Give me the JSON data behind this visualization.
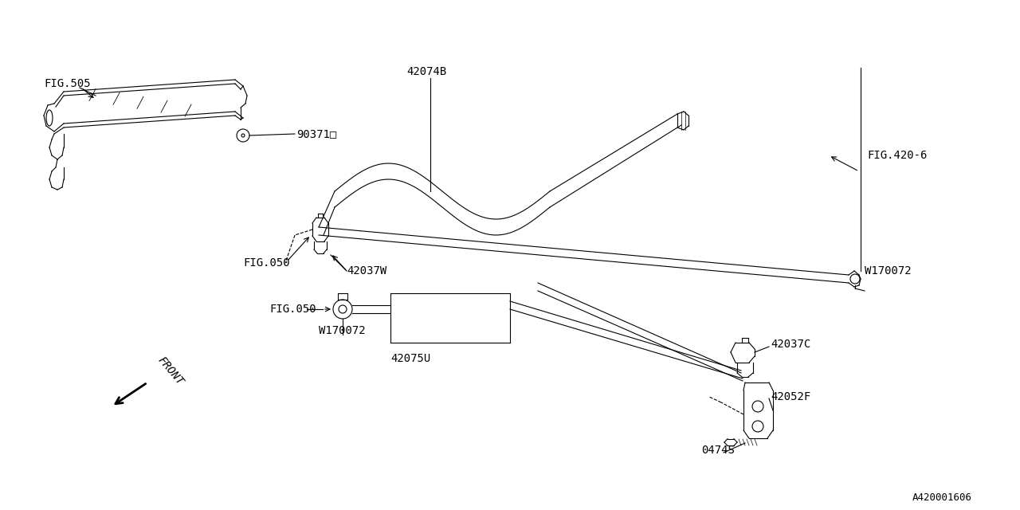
{
  "bg_color": "#ffffff",
  "line_color": "#000000",
  "fig_width": 12.8,
  "fig_height": 6.4,
  "watermark": "A420001606",
  "fig505_label": "FIG.505",
  "label_903710": "90371□",
  "label_42074B": "42074B",
  "label_fig420_6": "FIG.420-6",
  "label_fig050_top": "FIG.050",
  "label_42037W": "42037W",
  "label_W170072_top": "W170072",
  "label_fig050_bot": "FIG.050",
  "label_W170072_bot": "W170072",
  "label_42075U": "42075U",
  "label_42037C": "42037C",
  "label_42052F": "42052F",
  "label_0474S": "0474S",
  "label_FRONT": "FRONT"
}
